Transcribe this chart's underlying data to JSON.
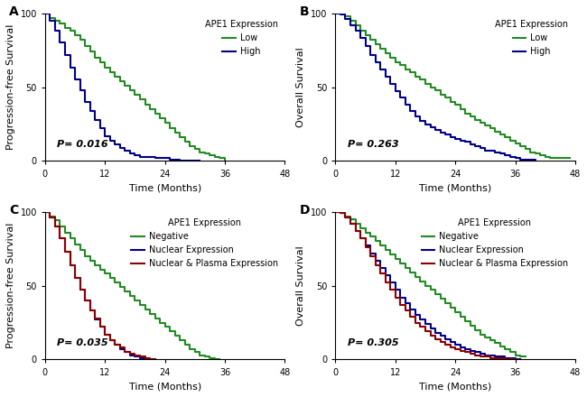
{
  "panels": [
    {
      "label": "A",
      "ylabel": "Progression-free Survival",
      "pvalue": "P= 0.016",
      "legend_title": "APE1 Expression",
      "legend_entries": [
        "Low",
        "High"
      ],
      "colors": [
        "#228B22",
        "#00008B"
      ],
      "curves": [
        {
          "x": [
            0,
            1,
            2,
            3,
            4,
            5,
            6,
            7,
            8,
            9,
            10,
            11,
            12,
            13,
            14,
            15,
            16,
            17,
            18,
            19,
            20,
            21,
            22,
            23,
            24,
            25,
            26,
            27,
            28,
            29,
            30,
            31,
            32,
            33,
            34,
            35,
            36
          ],
          "y": [
            100,
            97,
            95,
            93,
            90,
            88,
            85,
            82,
            78,
            74,
            70,
            67,
            63,
            60,
            57,
            54,
            51,
            48,
            45,
            42,
            38,
            35,
            32,
            29,
            26,
            22,
            19,
            16,
            13,
            10,
            8,
            6,
            5,
            4,
            3,
            2,
            0
          ]
        },
        {
          "x": [
            0,
            1,
            2,
            3,
            4,
            5,
            6,
            7,
            8,
            9,
            10,
            11,
            12,
            13,
            14,
            15,
            16,
            17,
            18,
            19,
            20,
            21,
            22,
            23,
            24,
            25,
            26,
            27,
            28,
            29,
            30,
            31
          ],
          "y": [
            100,
            95,
            88,
            80,
            72,
            63,
            55,
            48,
            40,
            34,
            28,
            22,
            17,
            14,
            11,
            9,
            7,
            5,
            4,
            3,
            3,
            3,
            2,
            2,
            2,
            1,
            1,
            0,
            0,
            0,
            0,
            0
          ]
        }
      ]
    },
    {
      "label": "B",
      "ylabel": "Overall Survival",
      "pvalue": "P= 0.263",
      "legend_title": "APE1 Expression",
      "legend_entries": [
        "Low",
        "High"
      ],
      "colors": [
        "#228B22",
        "#00008B"
      ],
      "curves": [
        {
          "x": [
            0,
            1,
            2,
            3,
            4,
            5,
            6,
            7,
            8,
            9,
            10,
            11,
            12,
            13,
            14,
            15,
            16,
            17,
            18,
            19,
            20,
            21,
            22,
            23,
            24,
            25,
            26,
            27,
            28,
            29,
            30,
            31,
            32,
            33,
            34,
            35,
            36,
            37,
            38,
            39,
            40,
            41,
            42,
            43,
            44,
            45,
            46,
            47
          ],
          "y": [
            100,
            100,
            98,
            95,
            92,
            88,
            85,
            82,
            79,
            76,
            73,
            70,
            67,
            65,
            62,
            60,
            57,
            55,
            52,
            50,
            48,
            45,
            43,
            40,
            38,
            35,
            32,
            30,
            28,
            26,
            24,
            22,
            20,
            18,
            16,
            14,
            12,
            10,
            8,
            6,
            5,
            4,
            3,
            2,
            2,
            2,
            2,
            2
          ]
        },
        {
          "x": [
            0,
            1,
            2,
            3,
            4,
            5,
            6,
            7,
            8,
            9,
            10,
            11,
            12,
            13,
            14,
            15,
            16,
            17,
            18,
            19,
            20,
            21,
            22,
            23,
            24,
            25,
            26,
            27,
            28,
            29,
            30,
            31,
            32,
            33,
            34,
            35,
            36,
            37,
            38,
            39,
            40
          ],
          "y": [
            100,
            99,
            96,
            92,
            88,
            83,
            78,
            72,
            67,
            62,
            57,
            52,
            47,
            43,
            38,
            34,
            30,
            27,
            25,
            23,
            21,
            19,
            18,
            16,
            15,
            14,
            13,
            11,
            10,
            9,
            7,
            7,
            6,
            5,
            4,
            3,
            2,
            1,
            1,
            1,
            0
          ]
        }
      ]
    },
    {
      "label": "C",
      "ylabel": "Progression-free Survival",
      "pvalue": "P= 0.035",
      "legend_title": "APE1 Expression",
      "legend_entries": [
        "Negative",
        "Nuclear Expression",
        "Nuclear & Plasma Expression"
      ],
      "colors": [
        "#228B22",
        "#00008B",
        "#8B0000"
      ],
      "curves": [
        {
          "x": [
            0,
            1,
            2,
            3,
            4,
            5,
            6,
            7,
            8,
            9,
            10,
            11,
            12,
            13,
            14,
            15,
            16,
            17,
            18,
            19,
            20,
            21,
            22,
            23,
            24,
            25,
            26,
            27,
            28,
            29,
            30,
            31,
            32,
            33,
            34,
            35
          ],
          "y": [
            100,
            97,
            94,
            90,
            86,
            82,
            78,
            74,
            70,
            67,
            64,
            61,
            58,
            55,
            52,
            49,
            46,
            43,
            40,
            37,
            34,
            31,
            28,
            25,
            22,
            19,
            16,
            13,
            10,
            7,
            5,
            3,
            2,
            1,
            0,
            0
          ]
        },
        {
          "x": [
            0,
            1,
            2,
            3,
            4,
            5,
            6,
            7,
            8,
            9,
            10,
            11,
            12,
            13,
            14,
            15,
            16,
            17,
            18,
            19,
            20
          ],
          "y": [
            100,
            96,
            90,
            82,
            73,
            64,
            55,
            47,
            40,
            33,
            27,
            22,
            17,
            13,
            10,
            7,
            5,
            3,
            2,
            1,
            0
          ]
        },
        {
          "x": [
            0,
            1,
            2,
            3,
            4,
            5,
            6,
            7,
            8,
            9,
            10,
            11,
            12,
            13,
            14,
            15,
            16,
            17,
            18,
            19,
            20,
            21,
            22
          ],
          "y": [
            100,
            96,
            90,
            82,
            73,
            64,
            55,
            47,
            40,
            33,
            28,
            22,
            17,
            13,
            10,
            8,
            5,
            4,
            3,
            2,
            1,
            0,
            0
          ]
        }
      ]
    },
    {
      "label": "D",
      "ylabel": "Overall Survival",
      "pvalue": "P= 0.305",
      "legend_title": "APE1 Expression",
      "legend_entries": [
        "Negative",
        "Nuclear Expression",
        "Nuclear & Plasma Expression"
      ],
      "colors": [
        "#228B22",
        "#00008B",
        "#8B0000"
      ],
      "curves": [
        {
          "x": [
            0,
            1,
            2,
            3,
            4,
            5,
            6,
            7,
            8,
            9,
            10,
            11,
            12,
            13,
            14,
            15,
            16,
            17,
            18,
            19,
            20,
            21,
            22,
            23,
            24,
            25,
            26,
            27,
            28,
            29,
            30,
            31,
            32,
            33,
            34,
            35,
            36,
            37,
            38
          ],
          "y": [
            100,
            99,
            97,
            95,
            92,
            89,
            86,
            83,
            80,
            77,
            74,
            71,
            68,
            65,
            62,
            59,
            56,
            53,
            50,
            47,
            44,
            41,
            38,
            35,
            32,
            29,
            26,
            23,
            20,
            17,
            15,
            13,
            11,
            9,
            7,
            5,
            3,
            2,
            2
          ]
        },
        {
          "x": [
            0,
            1,
            2,
            3,
            4,
            5,
            6,
            7,
            8,
            9,
            10,
            11,
            12,
            13,
            14,
            15,
            16,
            17,
            18,
            19,
            20,
            21,
            22,
            23,
            24,
            25,
            26,
            27,
            28,
            29,
            30,
            31,
            32,
            33,
            34,
            35,
            36,
            37
          ],
          "y": [
            100,
            99,
            96,
            92,
            87,
            82,
            77,
            72,
            67,
            62,
            57,
            52,
            47,
            42,
            38,
            34,
            30,
            27,
            24,
            21,
            18,
            16,
            14,
            12,
            10,
            8,
            7,
            6,
            5,
            4,
            3,
            3,
            2,
            2,
            1,
            1,
            0,
            0
          ]
        },
        {
          "x": [
            0,
            1,
            2,
            3,
            4,
            5,
            6,
            7,
            8,
            9,
            10,
            11,
            12,
            13,
            14,
            15,
            16,
            17,
            18,
            19,
            20,
            21,
            22,
            23,
            24,
            25,
            26,
            27,
            28,
            29,
            30,
            31,
            32,
            33,
            34,
            35,
            36
          ],
          "y": [
            100,
            99,
            96,
            92,
            87,
            82,
            76,
            70,
            64,
            58,
            52,
            47,
            42,
            37,
            33,
            29,
            25,
            22,
            19,
            16,
            14,
            12,
            10,
            8,
            7,
            6,
            5,
            4,
            3,
            2,
            2,
            1,
            1,
            1,
            0,
            0,
            0
          ]
        }
      ]
    }
  ],
  "xlim": [
    0,
    48
  ],
  "ylim": [
    0,
    100
  ],
  "xticks": [
    0,
    12,
    24,
    36,
    48
  ],
  "yticks": [
    0,
    50,
    100
  ],
  "xlabel": "Time (Months)",
  "bg_color": "#ffffff",
  "linewidth": 1.5,
  "fontsize_label": 8,
  "fontsize_tick": 7,
  "fontsize_legend": 7,
  "fontsize_pvalue": 8,
  "fontsize_panel_label": 10
}
